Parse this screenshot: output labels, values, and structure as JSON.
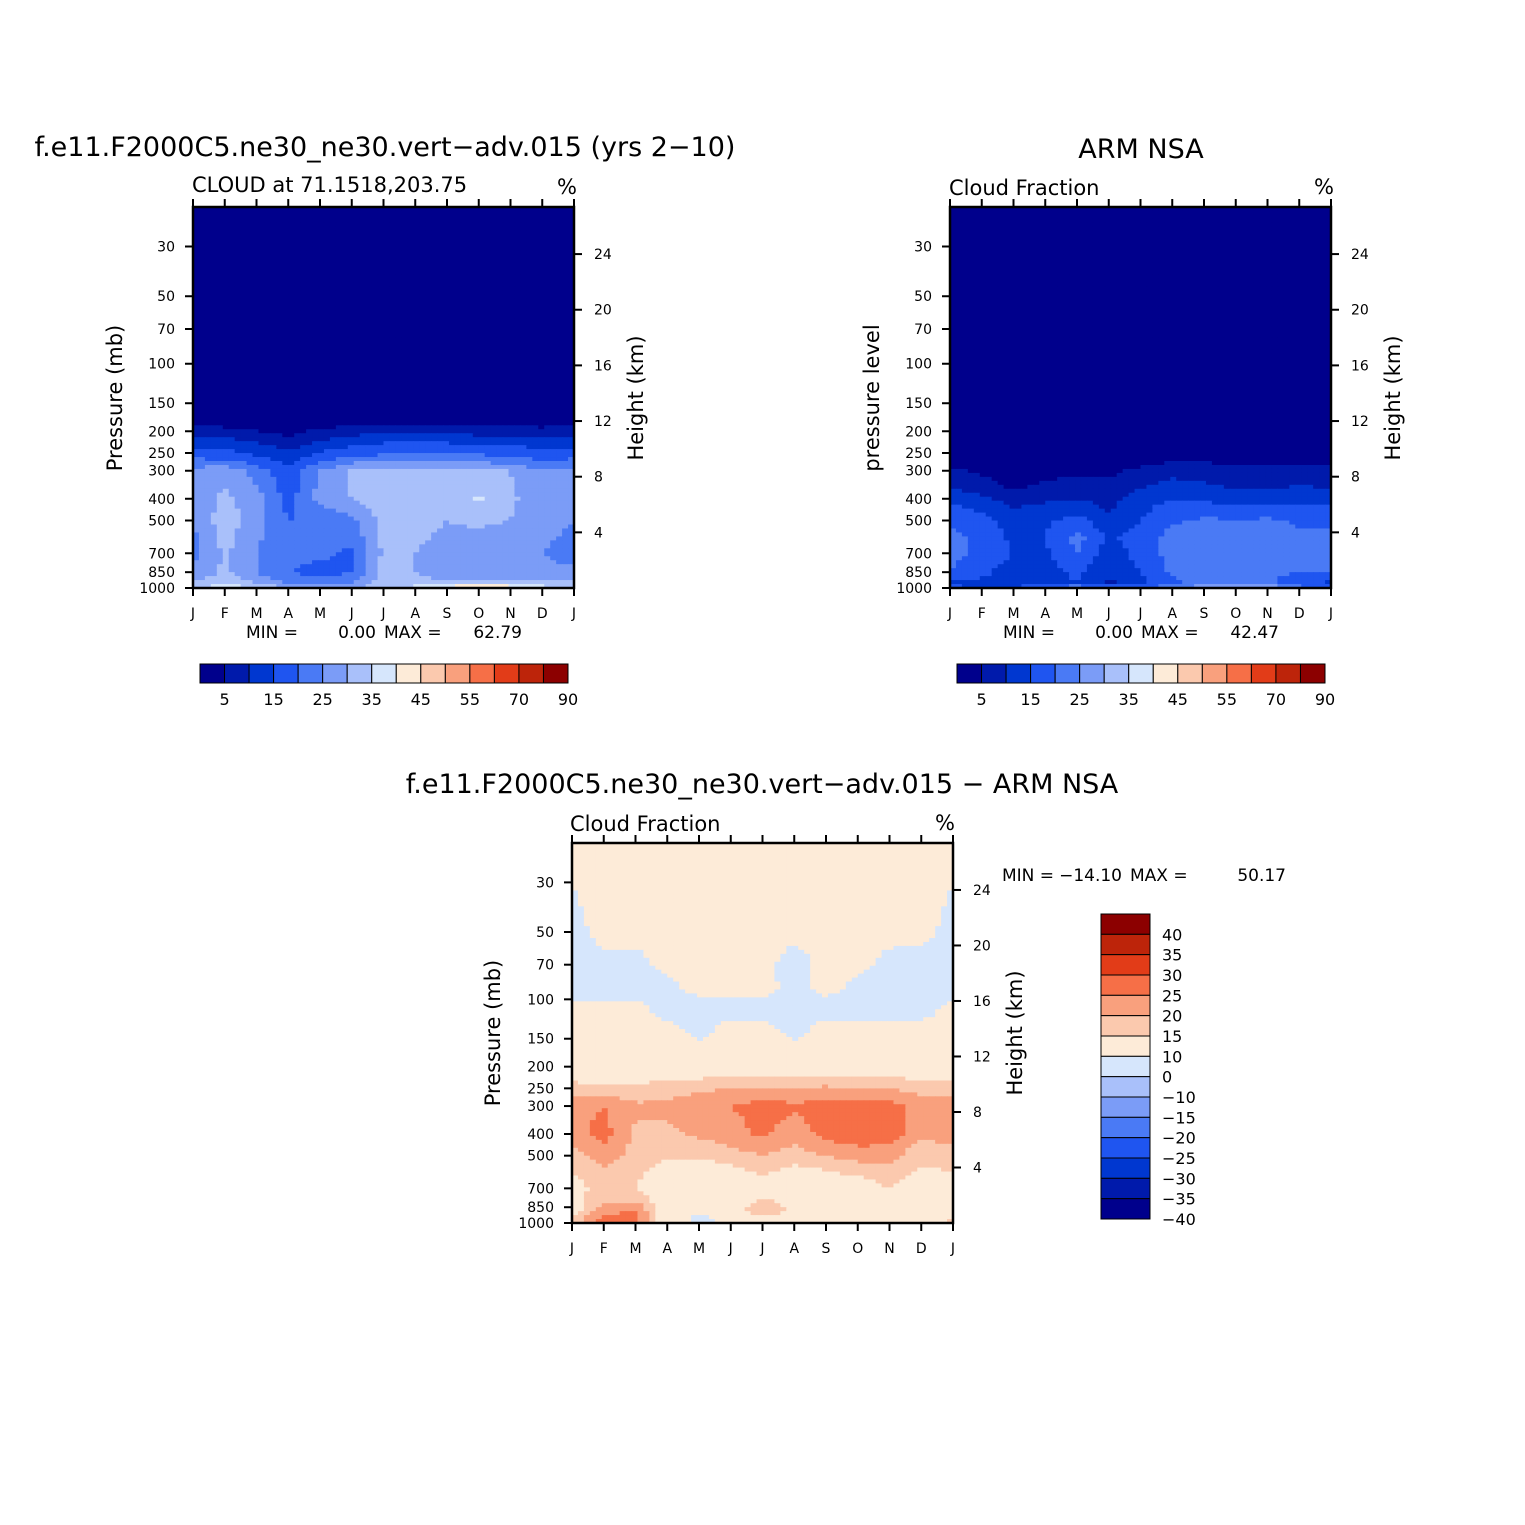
{
  "colors": {
    "cloud_scale": [
      "#00008c",
      "#001aab",
      "#0037d0",
      "#1f55f0",
      "#4a7af5",
      "#7b9cf7",
      "#a9c0fa",
      "#d6e6fc",
      "#fdebd8",
      "#fbc9ae",
      "#f9a07d",
      "#f66f47",
      "#e23c18",
      "#bd240a",
      "#8c0000"
    ],
    "diff_scale": [
      "#00008c",
      "#001aab",
      "#0037d0",
      "#1f55f0",
      "#4a7af5",
      "#7b9cf7",
      "#a9c0fa",
      "#d6e6fc",
      "#fdebd8",
      "#fbc9ae",
      "#f9a07d",
      "#f66f47",
      "#e23c18",
      "#bd240a",
      "#8c0000"
    ]
  },
  "chart_data": [
    {
      "id": "model",
      "type": "heatmap",
      "title": "f.e11.F2000C5.ne30_ne30.vert-adv.015 (yrs 2-10)",
      "subtitle_left": "CLOUD at 71.1518,203.75",
      "subtitle_right": "%",
      "ylabel": "Pressure (mb)",
      "ylabel_right": "Height (km)",
      "x_ticks": [
        "J",
        "F",
        "M",
        "A",
        "M",
        "J",
        "J",
        "A",
        "S",
        "O",
        "N",
        "D",
        "J"
      ],
      "y_ticks": [
        30,
        50,
        70,
        100,
        150,
        200,
        250,
        300,
        400,
        500,
        700,
        850,
        1000
      ],
      "y_range_mb": [
        20,
        1000
      ],
      "height_ticks_km": [
        24,
        20,
        16,
        12,
        8,
        4
      ],
      "min_label": "MIN =",
      "min_value": "0.00",
      "max_label": "MAX =",
      "max_value": "62.79",
      "colorbar_levels": [
        "5",
        "15",
        "25",
        "35",
        "45",
        "55",
        "70",
        "90"
      ],
      "x_months": [
        0,
        1,
        2,
        3,
        4,
        5,
        6,
        7,
        8,
        9,
        10,
        11,
        12
      ],
      "levels_mb": [
        20,
        180,
        205,
        230,
        260,
        300,
        400,
        500,
        700,
        850,
        920,
        980,
        1000
      ],
      "values": [
        [
          2,
          2,
          2,
          2,
          2,
          2,
          2,
          2,
          2,
          2,
          2,
          2,
          2
        ],
        [
          3,
          2,
          2,
          2,
          2,
          2,
          2,
          2,
          2,
          2,
          2,
          2,
          3
        ],
        [
          9,
          8,
          6,
          4,
          7,
          9,
          10,
          10,
          10,
          9,
          9,
          8,
          9
        ],
        [
          14,
          13,
          11,
          8,
          12,
          14,
          16,
          16,
          16,
          15,
          15,
          13,
          14
        ],
        [
          19,
          18,
          15,
          12,
          17,
          20,
          21,
          22,
          21,
          21,
          20,
          18,
          19
        ],
        [
          27,
          28,
          23,
          16,
          25,
          31,
          32,
          32,
          31,
          31,
          30,
          25,
          27
        ],
        [
          27,
          31,
          27,
          18,
          27,
          30,
          33,
          33,
          31,
          36,
          31,
          27,
          27
        ],
        [
          25,
          33,
          27,
          20,
          21,
          24,
          32,
          32,
          30,
          31,
          30,
          27,
          25
        ],
        [
          23,
          31,
          25,
          22,
          21,
          19,
          31,
          30,
          28,
          27,
          26,
          25,
          23
        ],
        [
          26,
          31,
          25,
          20,
          18,
          20,
          33,
          30,
          29,
          28,
          29,
          26,
          26
        ],
        [
          29,
          33,
          28,
          22,
          21,
          22,
          32,
          31,
          29,
          29,
          30,
          28,
          29
        ],
        [
          33,
          37,
          33,
          28,
          26,
          27,
          34,
          35,
          38,
          44,
          40,
          35,
          33
        ],
        [
          35,
          43,
          38,
          30,
          27,
          28,
          34,
          36,
          42,
          47,
          43,
          37,
          35
        ]
      ]
    },
    {
      "id": "obs",
      "type": "heatmap",
      "title": "ARM NSA",
      "subtitle_left": "Cloud Fraction",
      "subtitle_right": "%",
      "ylabel": "pressure level",
      "ylabel_right": "Height (km)",
      "x_ticks": [
        "J",
        "F",
        "M",
        "A",
        "M",
        "J",
        "J",
        "A",
        "S",
        "O",
        "N",
        "D",
        "J"
      ],
      "y_ticks": [
        30,
        50,
        70,
        100,
        150,
        200,
        250,
        300,
        400,
        500,
        700,
        850,
        1000
      ],
      "y_range_mb": [
        20,
        1000
      ],
      "height_ticks_km": [
        24,
        20,
        16,
        12,
        8,
        4
      ],
      "min_label": "MIN =",
      "min_value": "0.00",
      "max_label": "MAX =",
      "max_value": "42.47",
      "colorbar_levels": [
        "5",
        "15",
        "25",
        "35",
        "45",
        "55",
        "70",
        "90"
      ],
      "x_months": [
        0,
        1,
        2,
        3,
        4,
        5,
        6,
        7,
        8,
        9,
        10,
        11,
        12
      ],
      "levels_mb": [
        20,
        250,
        300,
        350,
        400,
        500,
        600,
        700,
        850,
        950,
        1000
      ],
      "values": [
        [
          1,
          1,
          1,
          1,
          1,
          1,
          1,
          1,
          1,
          1,
          1,
          1,
          1
        ],
        [
          2,
          2,
          2,
          2,
          2,
          2,
          2,
          2,
          3,
          2,
          2,
          2,
          2
        ],
        [
          6,
          4,
          3,
          3,
          4,
          4,
          6,
          8,
          7,
          6,
          6,
          7,
          6
        ],
        [
          9,
          7,
          4,
          6,
          7,
          6,
          9,
          12,
          11,
          9,
          9,
          10,
          9
        ],
        [
          14,
          11,
          8,
          9,
          10,
          8,
          13,
          15,
          14,
          13,
          12,
          14,
          14
        ],
        [
          19,
          17,
          13,
          14,
          17,
          11,
          15,
          19,
          21,
          20,
          21,
          19,
          19
        ],
        [
          22,
          18,
          14,
          15,
          22,
          14,
          18,
          22,
          24,
          24,
          23,
          21,
          22
        ],
        [
          22,
          18,
          15,
          14,
          20,
          12,
          17,
          22,
          24,
          25,
          24,
          22,
          22
        ],
        [
          20,
          16,
          13,
          13,
          16,
          11,
          15,
          21,
          22,
          23,
          22,
          20,
          20
        ],
        [
          14,
          14,
          12,
          13,
          15,
          9,
          14,
          19,
          22,
          22,
          21,
          16,
          14
        ],
        [
          16,
          15,
          16,
          20,
          25,
          20,
          18,
          24,
          30,
          33,
          30,
          24,
          16
        ]
      ]
    },
    {
      "id": "diff",
      "type": "heatmap",
      "title": "f.e11.F2000C5.ne30_ne30.vert-adv.015 - ARM NSA",
      "subtitle_left": "Cloud Fraction",
      "subtitle_right": "%",
      "ylabel": "Pressure (mb)",
      "ylabel_right": "Height (km)",
      "x_ticks": [
        "J",
        "F",
        "M",
        "A",
        "M",
        "J",
        "J",
        "A",
        "S",
        "O",
        "N",
        "D",
        "J"
      ],
      "y_ticks": [
        30,
        50,
        70,
        100,
        150,
        200,
        250,
        300,
        400,
        500,
        700,
        850,
        1000
      ],
      "y_range_mb": [
        20,
        1000
      ],
      "height_ticks_km": [
        24,
        20,
        16,
        12,
        8,
        4
      ],
      "min_label": "MIN =",
      "min_value": "-14.10",
      "max_label": "MAX =",
      "max_value": "50.17",
      "colorbar_levels": [
        "40",
        "35",
        "30",
        "25",
        "20",
        "15",
        "10",
        "0",
        "-10",
        "-15",
        "-20",
        "-25",
        "-30",
        "-35",
        "-40"
      ],
      "x_months": [
        0,
        1,
        2,
        3,
        4,
        5,
        6,
        7,
        8,
        9,
        10,
        11,
        12
      ],
      "levels_mb": [
        20,
        50,
        70,
        90,
        110,
        140,
        200,
        250,
        300,
        400,
        500,
        600,
        700,
        800,
        880,
        950,
        1000
      ],
      "values": [
        [
          2,
          2,
          2,
          2,
          2,
          2,
          2,
          2,
          2,
          2,
          2,
          2,
          2
        ],
        [
          -2,
          2,
          2,
          2,
          2,
          2,
          2,
          2,
          2,
          2,
          2,
          2,
          -2
        ],
        [
          -3,
          -2,
          -2,
          2,
          2,
          2,
          2,
          -3,
          2,
          2,
          -2,
          -3,
          -3
        ],
        [
          -3,
          -3,
          -3,
          -2,
          2,
          2,
          2,
          -2,
          2,
          -2,
          -3,
          -3,
          -3
        ],
        [
          2,
          2,
          2,
          -3,
          -3,
          -3,
          -3,
          -3,
          -3,
          -3,
          -3,
          -3,
          2
        ],
        [
          3,
          3,
          3,
          3,
          -2,
          3,
          3,
          -2,
          3,
          3,
          3,
          3,
          3
        ],
        [
          5,
          5,
          5,
          5,
          5,
          5,
          5,
          5,
          5,
          5,
          5,
          5,
          5
        ],
        [
          12,
          11,
          11,
          13,
          14,
          15,
          16,
          15,
          16,
          15,
          15,
          13,
          12
        ],
        [
          18,
          20,
          16,
          16,
          18,
          20,
          22,
          21,
          22,
          22,
          22,
          18,
          18
        ],
        [
          18,
          22,
          14,
          14,
          16,
          18,
          21,
          17,
          22,
          24,
          23,
          16,
          18
        ],
        [
          12,
          18,
          13,
          11,
          11,
          13,
          15,
          13,
          15,
          17,
          17,
          11,
          12
        ],
        [
          10,
          13,
          11,
          7,
          6,
          7,
          11,
          7,
          9,
          11,
          13,
          9,
          10
        ],
        [
          8,
          12,
          10,
          4,
          4,
          4,
          6,
          5,
          5,
          6,
          10,
          6,
          8
        ],
        [
          6,
          15,
          15,
          5,
          4,
          5,
          12,
          6,
          4,
          4,
          8,
          5,
          6
        ],
        [
          6,
          18,
          20,
          5,
          3,
          5,
          16,
          9,
          3,
          3,
          6,
          7,
          6
        ],
        [
          10,
          22,
          22,
          4,
          -2,
          4,
          6,
          4,
          4,
          6,
          3,
          4,
          10
        ],
        [
          12,
          25,
          20,
          6,
          -3,
          3,
          5,
          3,
          5,
          8,
          4,
          4,
          12
        ]
      ]
    }
  ]
}
